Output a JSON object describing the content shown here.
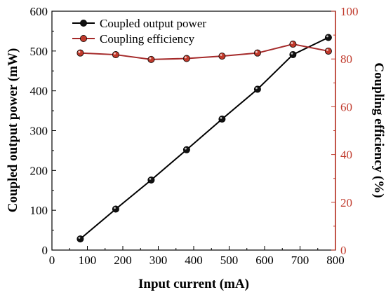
{
  "chart_data": {
    "type": "line",
    "title": "",
    "xlabel": "Input current (mA)",
    "ylabel_left": "Coupled output power (mW)",
    "ylabel_right": "Coupling efficiency (%)",
    "xlim": [
      0,
      800
    ],
    "ylim_left": [
      0,
      600
    ],
    "ylim_right": [
      0,
      100
    ],
    "x_ticks": [
      "0",
      "100",
      "200",
      "300",
      "400",
      "500",
      "600",
      "700",
      "800"
    ],
    "y_left_ticks": [
      "0",
      "100",
      "200",
      "300",
      "400",
      "500",
      "600"
    ],
    "y_right_ticks": [
      "0",
      "20",
      "40",
      "60",
      "80",
      "100"
    ],
    "grid": false,
    "legend_position": "top-left",
    "colors": {
      "left_axis": "#000000",
      "right_axis": "#c0392b"
    },
    "series": [
      {
        "name": "Coupled output power",
        "axis": "left",
        "color": "#000000",
        "x": [
          80,
          180,
          280,
          380,
          480,
          580,
          680,
          780
        ],
        "y": [
          28,
          103,
          176,
          252,
          329,
          404,
          491,
          534
        ]
      },
      {
        "name": "Coupling efficiency",
        "axis": "right",
        "color": "#a52a2a",
        "x": [
          80,
          180,
          280,
          380,
          480,
          580,
          680,
          780
        ],
        "y": [
          82.5,
          81.8,
          79.8,
          80.2,
          81.2,
          82.5,
          86.2,
          83.3
        ]
      }
    ]
  }
}
